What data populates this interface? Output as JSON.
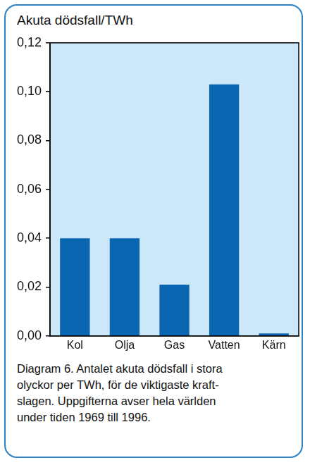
{
  "chart_data": {
    "type": "bar",
    "ylabel": "Akuta dödsfall/TWh",
    "categories": [
      "Kol",
      "Olja",
      "Gas",
      "Vatten",
      "Kärn"
    ],
    "values": [
      0.04,
      0.04,
      0.021,
      0.103,
      0.001
    ],
    "color": "#0b66b1",
    "ylim": [
      0,
      0.12
    ],
    "yticks": [
      {
        "value": 0,
        "label": "0,00"
      },
      {
        "value": 0.02,
        "label": "0,02"
      },
      {
        "value": 0.04,
        "label": "0,04"
      },
      {
        "value": 0.06,
        "label": "0,06"
      },
      {
        "value": 0.08,
        "label": "0,08"
      },
      {
        "value": 0.1,
        "label": "0,10"
      },
      {
        "value": 0.12,
        "label": "0,12"
      }
    ],
    "grid": false,
    "caption": [
      "Diagram 6. Antalet akuta dödsfall i stora",
      "olyckor per TWh, för de viktigaste kraft-",
      "slagen. Uppgifterna avser hela världen",
      "under tiden 1969 till 1996."
    ]
  }
}
